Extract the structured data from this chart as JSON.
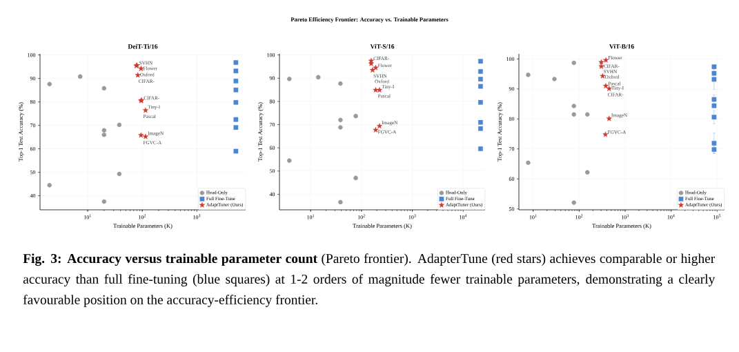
{
  "chart_data": [
    {
      "type": "scatter",
      "title": "DeiT-Ti/16",
      "xlabel": "Trainable Parameters (K)",
      "ylabel": "Top-1 Test Accuracy (%)",
      "log": "x",
      "grid": true,
      "legend": "bottom right",
      "xlim": [
        1.34,
        7850
      ],
      "ylim": [
        34,
        100.5
      ],
      "xticks": [
        {
          "value": 10,
          "label": "10$^{1}$"
        },
        {
          "value": 100,
          "label": "10$^{2}$"
        },
        {
          "value": 1000,
          "label": "10$^{3}$"
        }
      ],
      "yticks": [
        40,
        50,
        60,
        70,
        80,
        90,
        100
      ],
      "series": [
        {
          "name": "Head-Only",
          "color": "#999999",
          "marker": "circle",
          "x": [
            2,
            7.3,
            20,
            20,
            20,
            38,
            38,
            2,
            20
          ],
          "values": [
            87.6,
            90.8,
            85.8,
            67.9,
            66.0,
            70.2,
            49.3,
            44.5,
            37.5
          ]
        },
        {
          "name": "Full Fine-Tune",
          "color": "#4a86d4",
          "marker": "square",
          "x": [
            5200,
            5200,
            5200,
            5200,
            5200,
            5200,
            5200,
            5200
          ],
          "values": [
            96.8,
            93.2,
            88.9,
            85.1,
            79.8,
            72.5,
            69.1,
            59.0
          ]
        },
        {
          "name": "AdaptTuner (Ours)",
          "color": "#d03b2f",
          "marker": "star",
          "x": [
            78,
            80,
            95,
            83,
            95,
            97,
            115,
            95,
            115
          ],
          "values": [
            95.4,
            95.6,
            94.2,
            91.4,
            80.5,
            80.7,
            76.4,
            65.8,
            65.2
          ]
        }
      ],
      "annotations": [
        {
          "text": "CIFAR-",
          "x": 78,
          "y": 95.4
        },
        {
          "text": "SVHN",
          "x": 80,
          "y": 95.6
        },
        {
          "text": "Flower",
          "x": 95,
          "y": 94.2
        },
        {
          "text": "Oxford",
          "x": 83,
          "y": 91.4
        },
        {
          "text": "Pascal",
          "x": 95,
          "y": 80.5
        },
        {
          "text": "CIFAR-",
          "x": 97,
          "y": 80.7
        },
        {
          "text": "Tiny-I",
          "x": 115,
          "y": 76.4
        },
        {
          "text": "FGVC-A",
          "x": 95,
          "y": 65.8
        },
        {
          "text": "ImageN",
          "x": 115,
          "y": 65.2
        }
      ]
    },
    {
      "type": "scatter",
      "title": "ViT-S/16",
      "xlabel": "Trainable Parameters (K)",
      "ylabel": "Top-1 Test Accuracy (%)",
      "log": "x",
      "grid": true,
      "legend": "bottom right",
      "xlim": [
        2.43,
        27000
      ],
      "ylim": [
        33.3,
        100.5
      ],
      "xticks": [
        {
          "value": 10,
          "label": "10$^{1}$"
        },
        {
          "value": 100,
          "label": "10$^{2}$"
        },
        {
          "value": 1000,
          "label": "10$^{3}$"
        },
        {
          "value": 10000,
          "label": "10$^{4}$"
        }
      ],
      "yticks": [
        40,
        50,
        60,
        70,
        80,
        90,
        100
      ],
      "series": [
        {
          "name": "Head-Only",
          "color": "#999999",
          "marker": "circle",
          "x": [
            3.8,
            14.1,
            38.5,
            38.5,
            38.5,
            77,
            3.8,
            77,
            38.5
          ],
          "values": [
            89.7,
            90.4,
            87.7,
            72.0,
            68.8,
            73.7,
            54.5,
            47.0,
            36.6
          ]
        },
        {
          "name": "Full Fine-Tune",
          "color": "#4a86d4",
          "marker": "square",
          "x": [
            22000,
            22000,
            22000,
            22000,
            22000,
            22000,
            22000,
            22000
          ],
          "values": [
            97.3,
            92.9,
            89.6,
            86.5,
            79.6,
            71.0,
            68.3,
            59.6
          ]
        },
        {
          "name": "AdaptTuner (Ours)",
          "color": "#d03b2f",
          "marker": "star",
          "x": [
            155,
            155,
            190,
            165,
            190,
            226,
            226,
            190
          ],
          "values": [
            97.5,
            96.3,
            94.5,
            93.5,
            84.9,
            84.9,
            69.4,
            67.7
          ]
        }
      ],
      "annotations": [
        {
          "text": "CIFAR-",
          "x": 155,
          "y": 97.5
        },
        {
          "text": "SVHN",
          "x": 155,
          "y": 96.3
        },
        {
          "text": "Flower",
          "x": 190,
          "y": 94.5
        },
        {
          "text": "Oxford",
          "x": 165,
          "y": 93.5
        },
        {
          "text": "Pascal",
          "x": 190,
          "y": 84.9
        },
        {
          "text": "Tiny-I",
          "x": 226,
          "y": 84.9
        },
        {
          "text": "ImageN",
          "x": 226,
          "y": 69.4
        },
        {
          "text": "FGVC-A",
          "x": 190,
          "y": 67.7
        }
      ]
    },
    {
      "type": "scatter",
      "title": "ViT-B/16",
      "xlabel": "Trainable Parameters (K)",
      "ylabel": "Top-1 Test Accuracy (%)",
      "log": "x",
      "grid": true,
      "legend": "bottom right",
      "xlim": [
        4.9,
        145000
      ],
      "ylim": [
        49.7,
        101.7
      ],
      "xticks": [
        {
          "value": 10,
          "label": "10$^{1}$"
        },
        {
          "value": 100,
          "label": "10$^{2}$"
        },
        {
          "value": 1000,
          "label": "10$^{3}$"
        },
        {
          "value": 10000,
          "label": "10$^{4}$"
        },
        {
          "value": 100000,
          "label": "10$^{5}$"
        }
      ],
      "yticks": [
        50,
        60,
        70,
        80,
        90,
        100
      ],
      "series": [
        {
          "name": "Head-Only",
          "color": "#999999",
          "marker": "circle",
          "x": [
            7.8,
            29,
            77,
            77,
            77,
            151,
            7.8,
            151,
            77
          ],
          "values": [
            94.7,
            93.3,
            98.7,
            84.3,
            81.5,
            81.5,
            65.4,
            62.2,
            52.1
          ]
        },
        {
          "name": "Full Fine-Tune",
          "color": "#4a86d4",
          "marker": "square",
          "x": [
            86000,
            86000,
            86000,
            86000,
            86000,
            86000,
            86000,
            86000
          ],
          "values": [
            97.4,
            95.2,
            93.2,
            86.5,
            84.4,
            80.6,
            71.9,
            69.8
          ],
          "errors": [
            null,
            null,
            [
              89.8,
              96.6
            ],
            [
              85.0,
              88.0
            ],
            null,
            [
              78.4,
              82.8
            ],
            [
              68.5,
              75.3
            ],
            [
              68.5,
              71.1
            ]
          ]
        },
        {
          "name": "AdaptTuner (Ours)",
          "color": "#d03b2f",
          "marker": "star",
          "x": [
            382,
            304,
            304,
            325,
            380,
            449,
            449,
            373
          ],
          "values": [
            99.6,
            98.9,
            97.5,
            94.3,
            91.0,
            90.1,
            80.1,
            74.8
          ]
        }
      ],
      "annotations": [
        {
          "text": "Flower",
          "x": 382,
          "y": 99.6
        },
        {
          "text": "CIFAR-",
          "x": 304,
          "y": 98.9
        },
        {
          "text": "SVHN",
          "x": 304,
          "y": 97.5
        },
        {
          "text": "Oxford",
          "x": 325,
          "y": 94.3
        },
        {
          "text": "CIFAR-",
          "x": 373,
          "y": 91.1
        },
        {
          "text": "Pascal",
          "x": 380,
          "y": 91.0
        },
        {
          "text": "Tiny-I",
          "x": 449,
          "y": 90.1
        },
        {
          "text": "ImageN",
          "x": 449,
          "y": 80.1
        },
        {
          "text": "FGVC-A",
          "x": 373,
          "y": 74.8
        }
      ]
    },
    {
      "type": "other",
      "title": "Pareto Efficiency Frontier: Accuracy vs. Trainable Parameters",
      "annotations": [
        "**Fig. 3: Accuracy versus trainable parameter count** (Pareto frontier). AdapterTune (red stars) achieves comparable or higher accuracy than full fine-tuning (blue squares) at 1-2 orders of magnitude fewer trainable parameters, demonstrating a clearly favourable position on the accuracy-efficiency frontier."
      ]
    }
  ]
}
